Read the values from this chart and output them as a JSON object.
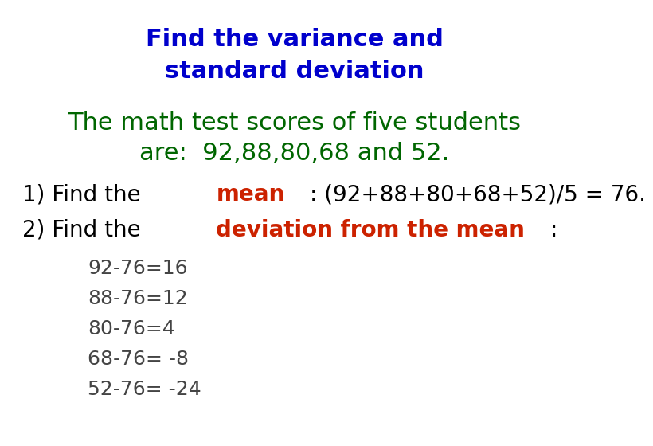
{
  "title_line1": "Find the variance and",
  "title_line2": "standard deviation",
  "title_color": "#0000CC",
  "body_line1": "The math test scores of five students",
  "body_line2": "are:  92,88,80,68 and 52.",
  "body_color": "#006600",
  "step1_black_prefix": "1) Find the ",
  "step1_red_word": "mean",
  "step1_black_suffix": ": (92+88+80+68+52)/5 = 76.",
  "step2_black_prefix": "2) Find the ",
  "step2_red_phrase": "deviation from the mean",
  "step2_black_suffix": ":",
  "black_color": "#000000",
  "red_color": "#CC2200",
  "deviations": [
    "92-76=16",
    "88-76=12",
    "80-76=4",
    "68-76= -8",
    "52-76= -24"
  ],
  "deviation_color": "#444444",
  "background_color": "#ffffff",
  "font_size_title": 22,
  "font_size_body": 22,
  "font_size_step": 20,
  "font_size_dev": 18
}
